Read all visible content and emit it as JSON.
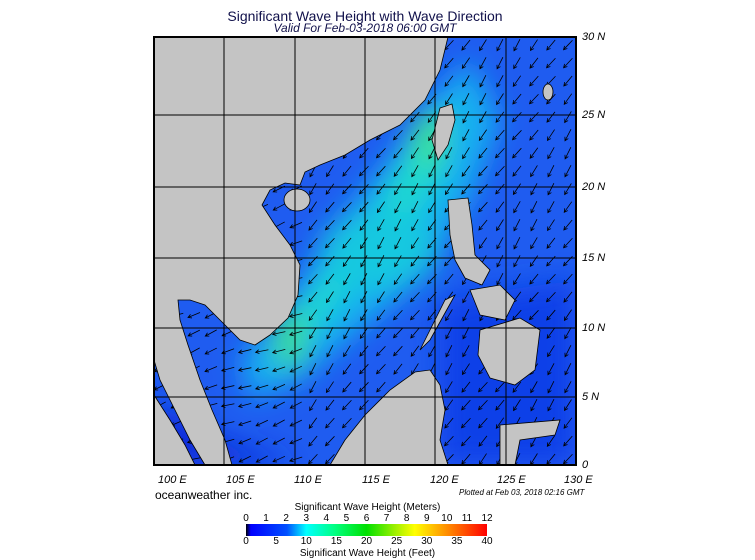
{
  "title": "Significant Wave Height with Wave Direction",
  "subtitle": "Valid For Feb-03-2018 06:00 GMT",
  "map": {
    "extent": {
      "lon": [
        100,
        130
      ],
      "lat": [
        0,
        30
      ]
    },
    "lat_labels": [
      "30 N",
      "25 N",
      "20 N",
      "15 N",
      "10 N",
      "5 N",
      "0"
    ],
    "lon_labels": [
      "100 E",
      "105 E",
      "110 E",
      "115 E",
      "120 E",
      "125 E",
      "130 E"
    ],
    "land_color": "#c4c4c4",
    "sea_base_color": "#1f5cf0",
    "dominant_wave_direction": "toward southwest"
  },
  "branding": "oceanweather inc.",
  "plotted_at": "Plotted at Feb 03, 2018 02:16 GMT",
  "colorbar": {
    "title_meters": "Significant Wave Height (Meters)",
    "title_feet": "Significant Wave Height (Feet)",
    "meters_ticks": [
      "0",
      "1",
      "2",
      "3",
      "4",
      "5",
      "6",
      "7",
      "8",
      "9",
      "10",
      "11",
      "12"
    ],
    "feet_ticks": [
      "0",
      "5",
      "10",
      "15",
      "20",
      "25",
      "30",
      "35",
      "40"
    ]
  }
}
